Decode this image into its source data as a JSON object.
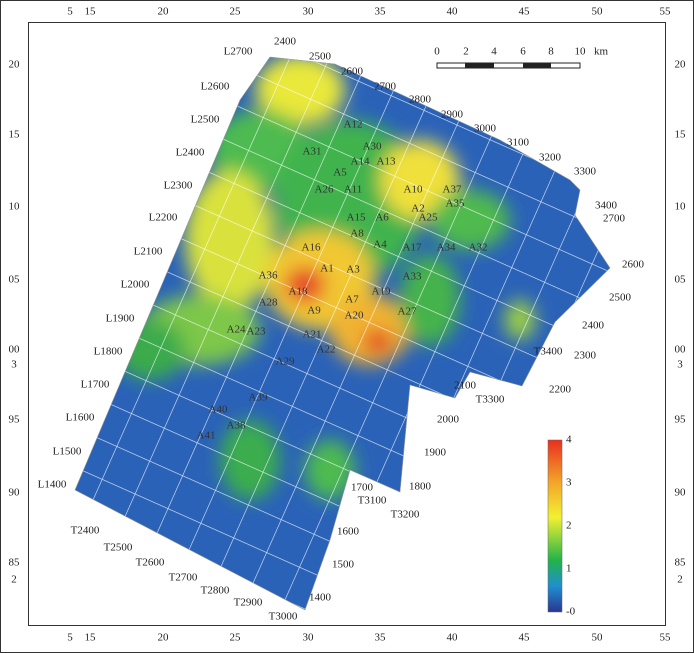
{
  "frame": {
    "top": [
      "5",
      "15",
      "20",
      "25",
      "30",
      "35",
      "40",
      "45",
      "50",
      "55"
    ],
    "bottom": [
      "5",
      "15",
      "20",
      "25",
      "30",
      "35",
      "40",
      "45",
      "50",
      "55"
    ],
    "left": [
      "20",
      "15",
      "10",
      "05",
      "00",
      "3",
      "95",
      "90",
      "85",
      "2"
    ],
    "right": [
      "20",
      "15",
      "10",
      "05",
      "00",
      "3",
      "95",
      "90",
      "85",
      "2"
    ]
  },
  "scale_bar": {
    "labels": [
      "0",
      "2",
      "4",
      "6",
      "8",
      "10"
    ],
    "unit": "km"
  },
  "legend": {
    "labels": [
      "4",
      "3",
      "2",
      "1",
      "-0"
    ]
  },
  "line_labels": [
    "L2700",
    "L2600",
    "L2500",
    "L2400",
    "L2300",
    "L2200",
    "L2100",
    "L2000",
    "L1900",
    "L1800",
    "L1700",
    "L1600",
    "L1500",
    "L1400"
  ],
  "trace_labels": [
    "2400",
    "2500",
    "2600",
    "2700",
    "2800",
    "2900",
    "3000",
    "3100",
    "3200",
    "3300",
    "3400",
    "2700",
    "2600",
    "2500",
    "2400",
    "2300",
    "2200",
    "T3400",
    "T3300",
    "2100",
    "2000",
    "1900",
    "1800",
    "1700",
    "T3100",
    "T3200",
    "1600",
    "1500",
    "1400",
    "T2400",
    "T2500",
    "T2600",
    "T2700",
    "T2800",
    "T2900",
    "T3000"
  ],
  "wells": [
    "A12",
    "A30",
    "A31",
    "A5",
    "A14",
    "A13",
    "A10",
    "A37",
    "A26",
    "A11",
    "A2",
    "A25",
    "A35",
    "A15",
    "A6",
    "A8",
    "A4",
    "A16",
    "A17",
    "A34",
    "A32",
    "A1",
    "A3",
    "A33",
    "A36",
    "A18",
    "A19",
    "A28",
    "A7",
    "A9",
    "A20",
    "A27",
    "A24",
    "A23",
    "A21",
    "A22",
    "A29",
    "A39",
    "A40",
    "A41",
    "A38"
  ]
}
